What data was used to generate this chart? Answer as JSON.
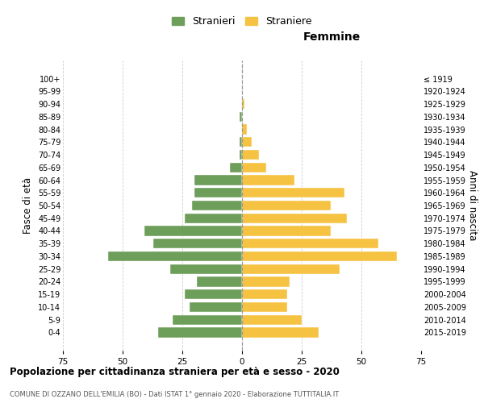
{
  "age_groups": [
    "0-4",
    "5-9",
    "10-14",
    "15-19",
    "20-24",
    "25-29",
    "30-34",
    "35-39",
    "40-44",
    "45-49",
    "50-54",
    "55-59",
    "60-64",
    "65-69",
    "70-74",
    "75-79",
    "80-84",
    "85-89",
    "90-94",
    "95-99",
    "100+"
  ],
  "birth_years": [
    "2015-2019",
    "2010-2014",
    "2005-2009",
    "2000-2004",
    "1995-1999",
    "1990-1994",
    "1985-1989",
    "1980-1984",
    "1975-1979",
    "1970-1974",
    "1965-1969",
    "1960-1964",
    "1955-1959",
    "1950-1954",
    "1945-1949",
    "1940-1944",
    "1935-1939",
    "1930-1934",
    "1925-1929",
    "1920-1924",
    "≤ 1919"
  ],
  "males": [
    35,
    29,
    22,
    24,
    19,
    30,
    56,
    37,
    41,
    24,
    21,
    20,
    20,
    5,
    1,
    1,
    0,
    1,
    0,
    0,
    0
  ],
  "females": [
    32,
    25,
    19,
    19,
    20,
    41,
    65,
    57,
    37,
    44,
    37,
    43,
    22,
    10,
    7,
    4,
    2,
    0,
    1,
    0,
    0
  ],
  "male_color": "#6d9e5a",
  "female_color": "#f5c242",
  "dashed_line_color": "#999999",
  "grid_color": "#cccccc",
  "bg_color": "#ffffff",
  "title": "Popolazione per cittadinanza straniera per età e sesso - 2020",
  "subtitle": "COMUNE DI OZZANO DELL'EMILIA (BO) - Dati ISTAT 1° gennaio 2020 - Elaborazione TUTTITALIA.IT",
  "xlabel_right": "Femmine",
  "ylabel_left": "Fasce di età",
  "ylabel_right": "Anni di nascita",
  "legend_male": "Stranieri",
  "legend_female": "Straniere",
  "xlim": 75
}
